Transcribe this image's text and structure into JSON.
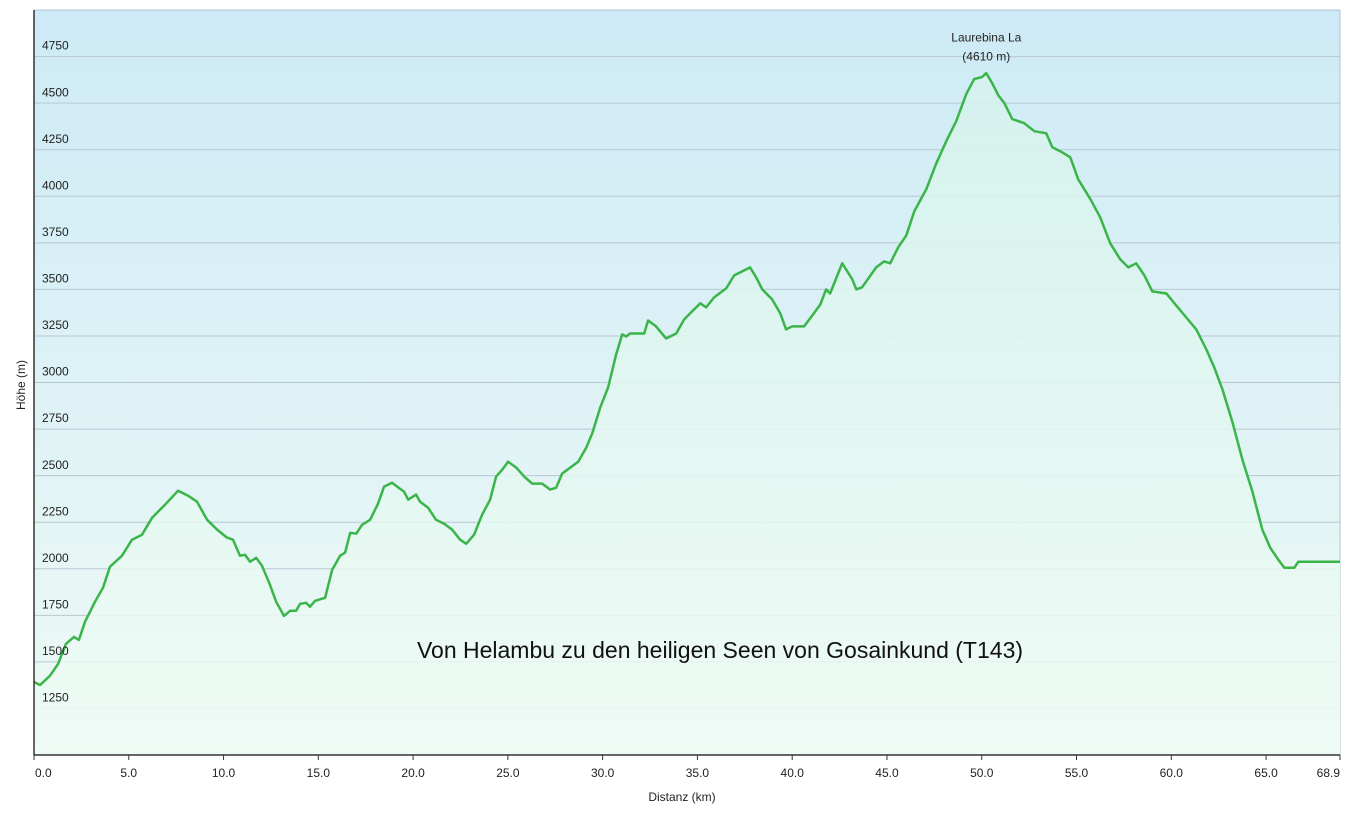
{
  "chart_data": {
    "type": "area",
    "title": "Von Helambu zu den heiligen Seen von Gosainkund  (T143)",
    "x_label": "Distanz  (km)",
    "y_label": "Höhe (m)",
    "annotation": {
      "text": [
        "Laurebina La",
        "(4610 m)"
      ]
    },
    "color": "#3ab54a",
    "grid": true,
    "xlim": [
      0,
      68.9
    ],
    "ylim": [
      1000,
      5000
    ],
    "xticks": [
      {
        "value": 0,
        "label": "0.0"
      },
      {
        "value": 5,
        "label": "5.0"
      },
      {
        "value": 10,
        "label": "10.0"
      },
      {
        "value": 15,
        "label": "15.0"
      },
      {
        "value": 20,
        "label": "20.0"
      },
      {
        "value": 25,
        "label": "25.0"
      },
      {
        "value": 30,
        "label": "30.0"
      },
      {
        "value": 35,
        "label": "35.0"
      },
      {
        "value": 40,
        "label": "40.0"
      },
      {
        "value": 45,
        "label": "45.0"
      },
      {
        "value": 50,
        "label": "50.0"
      },
      {
        "value": 55,
        "label": "55.0"
      },
      {
        "value": 60,
        "label": "60.0"
      },
      {
        "value": 65,
        "label": "65.0"
      },
      {
        "value": 68.9,
        "label": "68.9"
      }
    ],
    "yticks": [
      1250,
      1500,
      1750,
      2000,
      2250,
      2500,
      2750,
      3000,
      3250,
      3500,
      3750,
      4000,
      4250,
      4500,
      4750
    ],
    "x": [
      0,
      0.32,
      0.84,
      1.27,
      1.69,
      2.11,
      2.37,
      2.69,
      3.22,
      3.64,
      4.01,
      4.64,
      5.17,
      5.7,
      6.23,
      6.91,
      7.6,
      8.13,
      8.6,
      9.13,
      9.66,
      10.18,
      10.5,
      10.87,
      11.13,
      11.4,
      11.72,
      12.03,
      12.45,
      12.77,
      13.19,
      13.51,
      13.83,
      14.04,
      14.35,
      14.56,
      14.83,
      15.36,
      15.73,
      16.15,
      16.41,
      16.68,
      17,
      17.31,
      17.73,
      18.15,
      18.47,
      18.89,
      19.31,
      19.52,
      19.74,
      20.16,
      20.37,
      20.79,
      21.21,
      21.64,
      22.06,
      22.48,
      22.8,
      23.22,
      23.64,
      24.06,
      24.38,
      24.7,
      25.01,
      25.44,
      25.86,
      26.28,
      26.81,
      27.23,
      27.55,
      27.86,
      28.29,
      28.71,
      29.13,
      29.45,
      29.87,
      30.29,
      30.71,
      31.03,
      31.24,
      31.45,
      32.19,
      32.4,
      32.82,
      33.35,
      33.88,
      34.3,
      34.72,
      35.15,
      35.46,
      35.88,
      36.52,
      36.94,
      37.47,
      37.78,
      38.1,
      38.42,
      38.94,
      39.37,
      39.68,
      40,
      40.63,
      41.06,
      41.48,
      41.79,
      42,
      42.64,
      43.17,
      43.38,
      43.69,
      44.43,
      44.85,
      45.17,
      45.59,
      46.02,
      46.44,
      47.07,
      47.6,
      48.13,
      48.65,
      49.18,
      49.6,
      50.02,
      50.24,
      50.55,
      50.87,
      51.19,
      51.61,
      52.24,
      52.77,
      53.4,
      53.72,
      54.14,
      54.67,
      55.09,
      55.73,
      56.25,
      56.78,
      57.31,
      57.73,
      58.15,
      58.58,
      59,
      59.74,
      60.26,
      60.79,
      61.32,
      61.85,
      62.27,
      62.7,
      63.22,
      63.75,
      64.28,
      64.8,
      65.22,
      65.65,
      65.96,
      66.49,
      66.7,
      68.9
    ],
    "values": [
      1392,
      1376,
      1425,
      1489,
      1597,
      1634,
      1618,
      1715,
      1823,
      1898,
      2011,
      2070,
      2156,
      2183,
      2274,
      2344,
      2419,
      2392,
      2360,
      2263,
      2210,
      2167,
      2156,
      2070,
      2075,
      2038,
      2059,
      2016,
      1914,
      1823,
      1747,
      1774,
      1774,
      1812,
      1817,
      1796,
      1828,
      1844,
      1995,
      2070,
      2086,
      2193,
      2188,
      2236,
      2263,
      2349,
      2441,
      2462,
      2430,
      2414,
      2371,
      2398,
      2360,
      2328,
      2263,
      2242,
      2210,
      2156,
      2134,
      2183,
      2290,
      2371,
      2495,
      2532,
      2575,
      2543,
      2495,
      2457,
      2457,
      2425,
      2435,
      2511,
      2543,
      2575,
      2650,
      2726,
      2865,
      2973,
      3150,
      3258,
      3247,
      3263,
      3263,
      3333,
      3301,
      3236,
      3263,
      3339,
      3382,
      3425,
      3403,
      3457,
      3505,
      3575,
      3602,
      3618,
      3564,
      3500,
      3446,
      3371,
      3285,
      3301,
      3301,
      3360,
      3419,
      3500,
      3478,
      3640,
      3554,
      3500,
      3511,
      3618,
      3650,
      3640,
      3726,
      3790,
      3919,
      4037,
      4177,
      4296,
      4403,
      4548,
      4629,
      4640,
      4661,
      4607,
      4543,
      4500,
      4414,
      4392,
      4349,
      4338,
      4263,
      4242,
      4209,
      4091,
      3984,
      3887,
      3747,
      3661,
      3618,
      3640,
      3575,
      3489,
      3478,
      3414,
      3349,
      3285,
      3177,
      3080,
      2962,
      2790,
      2586,
      2414,
      2210,
      2113,
      2048,
      2005,
      2005,
      2038,
      2038
    ]
  }
}
